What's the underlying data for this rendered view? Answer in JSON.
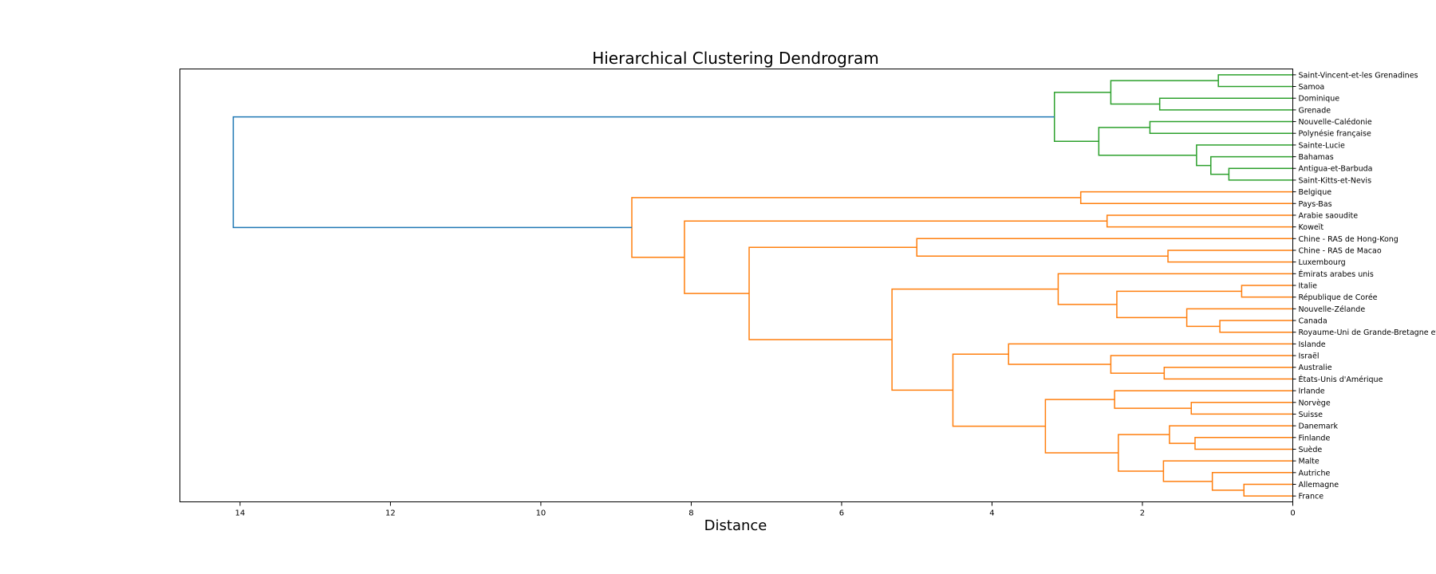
{
  "chart_data": {
    "type": "dendrogram",
    "title": "Hierarchical Clustering Dendrogram",
    "xlabel": "Distance",
    "orientation": "left",
    "xlim": [
      14.8,
      0
    ],
    "xticks": [
      14,
      12,
      10,
      8,
      6,
      4,
      2,
      0
    ],
    "colors": {
      "green": "#2ca02c",
      "orange": "#ff7f0e",
      "blue": "#1f77b4",
      "axis": "#000000"
    },
    "labels": [
      "Saint-Vincent-et-les Grenadines",
      "Samoa",
      "Dominique",
      "Grenade",
      "Nouvelle-Calédonie",
      "Polynésie française",
      "Sainte-Lucie",
      "Bahamas",
      "Antigua-et-Barbuda",
      "Saint-Kitts-et-Nevis",
      "Belgique",
      "Pays-Bas",
      "Arabie saoudite",
      "Koweït",
      "Chine - RAS de Hong-Kong",
      "Chine - RAS de Macao",
      "Luxembourg",
      "Émirats arabes unis",
      "Italie",
      "République de Corée",
      "Nouvelle-Zélande",
      "Canada",
      "Royaume-Uni de Grande-Bretagne et d",
      "Islande",
      "Israël",
      "Australie",
      "États-Unis d'Amérique",
      "Irlande",
      "Norvège",
      "Suisse",
      "Danemark",
      "Finlande",
      "Suède",
      "Malte",
      "Autriche",
      "Allemagne",
      "France"
    ],
    "merges": [
      {
        "a": "L0",
        "b": "L1",
        "distance": 0.99,
        "color": "green"
      },
      {
        "a": "L2",
        "b": "L3",
        "distance": 1.77,
        "color": "green"
      },
      {
        "a": "M0",
        "b": "M1",
        "distance": 2.42,
        "color": "green"
      },
      {
        "a": "L4",
        "b": "L5",
        "distance": 1.9,
        "color": "green"
      },
      {
        "a": "L8",
        "b": "L9",
        "distance": 0.85,
        "color": "green"
      },
      {
        "a": "L7",
        "b": "M4",
        "distance": 1.09,
        "color": "green"
      },
      {
        "a": "L6",
        "b": "M5",
        "distance": 1.28,
        "color": "green"
      },
      {
        "a": "M3",
        "b": "M6",
        "distance": 2.58,
        "color": "green"
      },
      {
        "a": "M2",
        "b": "M7",
        "distance": 3.17,
        "color": "green"
      },
      {
        "a": "L10",
        "b": "L11",
        "distance": 2.82,
        "color": "orange"
      },
      {
        "a": "L12",
        "b": "L13",
        "distance": 2.47,
        "color": "orange"
      },
      {
        "a": "L15",
        "b": "L16",
        "distance": 1.66,
        "color": "orange"
      },
      {
        "a": "L14",
        "b": "M11",
        "distance": 5.0,
        "color": "orange"
      },
      {
        "a": "L18",
        "b": "L19",
        "distance": 0.68,
        "color": "orange"
      },
      {
        "a": "L21",
        "b": "L22",
        "distance": 0.97,
        "color": "orange"
      },
      {
        "a": "L20",
        "b": "M14",
        "distance": 1.41,
        "color": "orange"
      },
      {
        "a": "M13",
        "b": "M15",
        "distance": 2.34,
        "color": "orange"
      },
      {
        "a": "L17",
        "b": "M16",
        "distance": 3.12,
        "color": "orange"
      },
      {
        "a": "L25",
        "b": "L26",
        "distance": 1.71,
        "color": "orange"
      },
      {
        "a": "L24",
        "b": "M18",
        "distance": 2.42,
        "color": "orange"
      },
      {
        "a": "L23",
        "b": "M19",
        "distance": 3.78,
        "color": "orange"
      },
      {
        "a": "L28",
        "b": "L29",
        "distance": 1.35,
        "color": "orange"
      },
      {
        "a": "L27",
        "b": "M21",
        "distance": 2.37,
        "color": "orange"
      },
      {
        "a": "L31",
        "b": "L32",
        "distance": 1.3,
        "color": "orange"
      },
      {
        "a": "L30",
        "b": "M23",
        "distance": 1.64,
        "color": "orange"
      },
      {
        "a": "L35",
        "b": "L36",
        "distance": 0.65,
        "color": "orange"
      },
      {
        "a": "L34",
        "b": "M25",
        "distance": 1.07,
        "color": "orange"
      },
      {
        "a": "L33",
        "b": "M26",
        "distance": 1.72,
        "color": "orange"
      },
      {
        "a": "M24",
        "b": "M27",
        "distance": 2.32,
        "color": "orange"
      },
      {
        "a": "M22",
        "b": "M28",
        "distance": 3.29,
        "color": "orange"
      },
      {
        "a": "M20",
        "b": "M29",
        "distance": 4.52,
        "color": "orange"
      },
      {
        "a": "M17",
        "b": "M30",
        "distance": 5.33,
        "color": "orange"
      },
      {
        "a": "M12",
        "b": "M31",
        "distance": 7.23,
        "color": "orange"
      },
      {
        "a": "M10",
        "b": "M32",
        "distance": 8.09,
        "color": "orange"
      },
      {
        "a": "M9",
        "b": "M33",
        "distance": 8.79,
        "color": "orange"
      },
      {
        "a": "M8",
        "b": "M34",
        "distance": 14.09,
        "color": "blue"
      }
    ]
  }
}
